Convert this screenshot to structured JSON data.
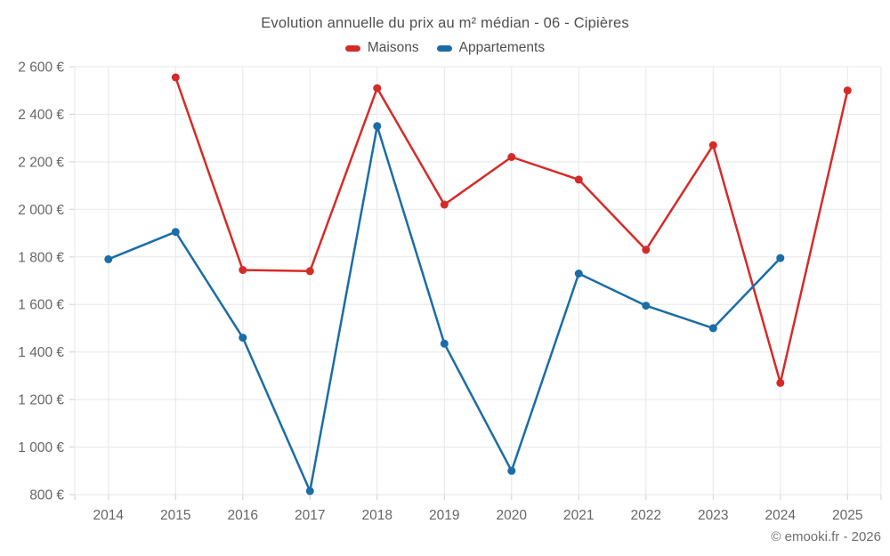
{
  "watermark": "© emooki.fr - 2026",
  "colors": {
    "background": "#ffffff",
    "grid": "#e7e7e7",
    "tick": "#cfcfcf",
    "axis_text": "#666666",
    "title_text": "#4f4f4f",
    "legend_text": "#4f4f4f",
    "watermark_text": "#6e6e6e",
    "maisons": "#d52b28",
    "appartements": "#1a6da6"
  },
  "chart_data": {
    "type": "line",
    "title": "Evolution annuelle du prix au m² médian - 06 - Cipières",
    "xlabel": "",
    "ylabel": "",
    "categories": [
      "2014",
      "2015",
      "2016",
      "2017",
      "2018",
      "2019",
      "2020",
      "2021",
      "2022",
      "2023",
      "2024",
      "2025"
    ],
    "series": [
      {
        "name": "Maisons",
        "color": "#d52b28",
        "values": [
          null,
          2555,
          1745,
          1740,
          2510,
          2020,
          2220,
          2125,
          1830,
          2270,
          1270,
          2500
        ]
      },
      {
        "name": "Appartements",
        "color": "#1a6da6",
        "values": [
          1790,
          1905,
          1460,
          815,
          2350,
          1435,
          900,
          1730,
          1595,
          1500,
          1795,
          null
        ]
      }
    ],
    "y_axis": {
      "min": 800,
      "max": 2600,
      "step": 200,
      "unit": "€",
      "tick_labels": [
        "800 €",
        "1 000 €",
        "1 200 €",
        "1 400 €",
        "1 600 €",
        "1 800 €",
        "2 000 €",
        "2 200 €",
        "2 400 €",
        "2 600 €"
      ]
    },
    "grid": true,
    "legend_position": "top",
    "marker": "circle"
  }
}
